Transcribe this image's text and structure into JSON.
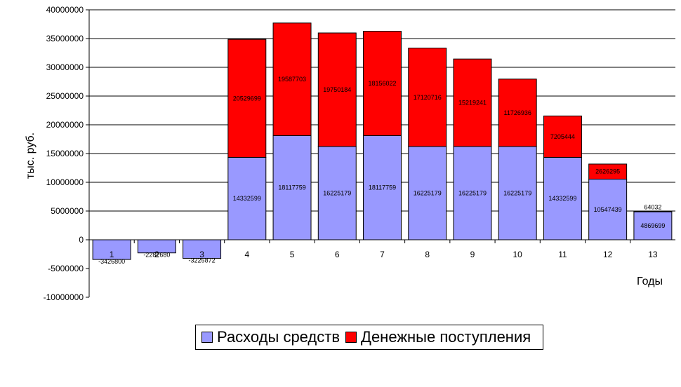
{
  "chart_data": {
    "type": "bar",
    "stacked": true,
    "categories": [
      "1",
      "2",
      "3",
      "4",
      "5",
      "6",
      "7",
      "8",
      "9",
      "10",
      "11",
      "12",
      "13"
    ],
    "series": [
      {
        "name": "Расходы средств",
        "color": "#9999ff",
        "values": [
          -3426800,
          -2282680,
          -3225872,
          14332599,
          18117759,
          16225179,
          18117759,
          16225179,
          16225179,
          16225179,
          14332599,
          10547439,
          4869699
        ],
        "labels": [
          "-3426800",
          "-2282680",
          "-3225872",
          "14332599",
          "18117759",
          "16225179",
          "18117759",
          "16225179",
          "16225179",
          "16225179",
          "14332599",
          "10547439",
          "4869699"
        ]
      },
      {
        "name": "Денежные поступления",
        "color": "#ff0000",
        "values": [
          0,
          0,
          0,
          20529699,
          19587703,
          19750184,
          18156022,
          17120716,
          15219241,
          11726936,
          7205444,
          2626295,
          64032
        ],
        "labels": [
          "",
          "",
          "",
          "20529699",
          "19587703",
          "19750184",
          "18156022",
          "17120716",
          "15219241",
          "11726936",
          "7205444",
          "2626295",
          "64032"
        ]
      }
    ],
    "xlabel": "Годы",
    "ylabel": "тыс. руб.",
    "ylim": [
      -10000000,
      40000000
    ],
    "yticks": [
      -10000000,
      -5000000,
      0,
      5000000,
      10000000,
      15000000,
      20000000,
      25000000,
      30000000,
      35000000,
      40000000
    ],
    "grid": true,
    "legend": "bottom"
  }
}
